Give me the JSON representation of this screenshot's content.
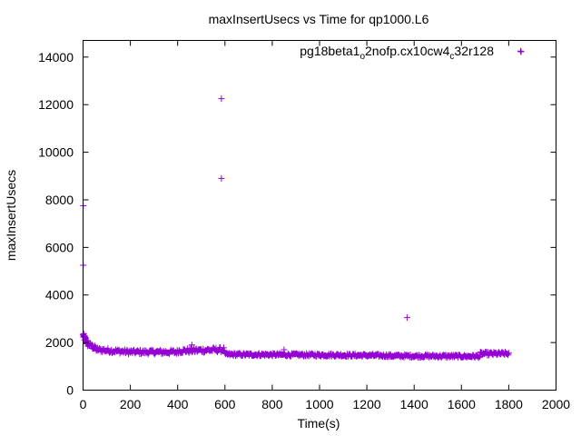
{
  "chart_data": {
    "type": "scatter",
    "title": "maxInsertUsecs vs Time for qp1000.L6",
    "xlabel": "Time(s)",
    "ylabel": "maxInsertUsecs",
    "xlim": [
      0,
      2000
    ],
    "ylim": [
      0,
      14700
    ],
    "xticks": [
      0,
      200,
      400,
      600,
      800,
      1000,
      1200,
      1400,
      1600,
      1800,
      2000
    ],
    "yticks": [
      0,
      2000,
      4000,
      6000,
      8000,
      10000,
      12000,
      14000
    ],
    "grid": false,
    "legend_position": "top-right",
    "marker": "+",
    "series": [
      {
        "name": "pg18beta1_o2nofp.cx10cw4_c32r128",
        "name_parts": {
          "a": "pg18beta1",
          "sub1": "o",
          "b": "2nofp.cx10cw4",
          "sub2": "c",
          "c": "32r128"
        },
        "color": "#9400d3",
        "outliers": [
          [
            1,
            7750
          ],
          [
            1,
            5250
          ],
          [
            585,
            12250
          ],
          [
            585,
            8900
          ],
          [
            1370,
            3050
          ],
          [
            1850,
            14250
          ],
          [
            850,
            1700
          ],
          [
            460,
            1900
          ]
        ],
        "segments": [
          {
            "x_start": 0,
            "x_end": 20,
            "y_start": 2300,
            "y_end": 1950,
            "spread": 250,
            "step": 1
          },
          {
            "x_start": 20,
            "x_end": 60,
            "y_start": 1950,
            "y_end": 1700,
            "spread": 200,
            "step": 2
          },
          {
            "x_start": 60,
            "x_end": 200,
            "y_start": 1700,
            "y_end": 1600,
            "spread": 180,
            "step": 3
          },
          {
            "x_start": 200,
            "x_end": 400,
            "y_start": 1600,
            "y_end": 1600,
            "spread": 180,
            "step": 3
          },
          {
            "x_start": 400,
            "x_end": 600,
            "y_start": 1650,
            "y_end": 1700,
            "spread": 200,
            "step": 3
          },
          {
            "x_start": 600,
            "x_end": 1000,
            "y_start": 1500,
            "y_end": 1480,
            "spread": 120,
            "step": 3
          },
          {
            "x_start": 1000,
            "x_end": 1300,
            "y_start": 1480,
            "y_end": 1450,
            "spread": 120,
            "step": 3
          },
          {
            "x_start": 1300,
            "x_end": 1680,
            "y_start": 1440,
            "y_end": 1420,
            "spread": 120,
            "step": 3
          },
          {
            "x_start": 1680,
            "x_end": 1800,
            "y_start": 1530,
            "y_end": 1530,
            "spread": 140,
            "step": 3
          }
        ]
      }
    ]
  }
}
